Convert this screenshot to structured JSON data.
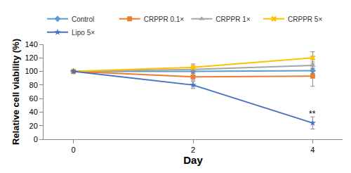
{
  "chart_data": {
    "type": "line",
    "x_label": "Day",
    "y_label": "Relative cell viability (%)",
    "x": [
      0,
      2,
      4
    ],
    "xlim": [
      -0.5,
      4.5
    ],
    "xticks": [
      0,
      2,
      4
    ],
    "ylim": [
      0,
      140
    ],
    "yticks": [
      0,
      20,
      40,
      60,
      80,
      100,
      120,
      140
    ],
    "grid": false,
    "legend": "top",
    "series": [
      {
        "name": "Control",
        "color": "#5b9bd5",
        "marker": "diamond",
        "values": [
          100,
          100,
          101
        ],
        "errors": [
          2,
          3,
          4
        ]
      },
      {
        "name": "CRPPR 0.1×",
        "color": "#ed7d31",
        "marker": "square",
        "values": [
          100,
          92,
          93
        ],
        "errors": [
          2,
          5,
          15
        ]
      },
      {
        "name": "CRPPR 1×",
        "color": "#a5a5a5",
        "marker": "triangle-up",
        "values": [
          100,
          103,
          109
        ],
        "errors": [
          2,
          4,
          5
        ]
      },
      {
        "name": "CRPPR 5×",
        "color": "#ffc000",
        "marker": "x",
        "values": [
          100,
          106,
          120
        ],
        "errors": [
          2,
          5,
          9
        ]
      },
      {
        "name": "Lipo 5×",
        "color": "#4472c4",
        "marker": "star",
        "values": [
          100,
          80,
          24
        ],
        "errors": [
          2,
          5,
          9
        ]
      }
    ],
    "annotations": [
      {
        "text": "**",
        "x": 4,
        "y": 37
      }
    ]
  }
}
